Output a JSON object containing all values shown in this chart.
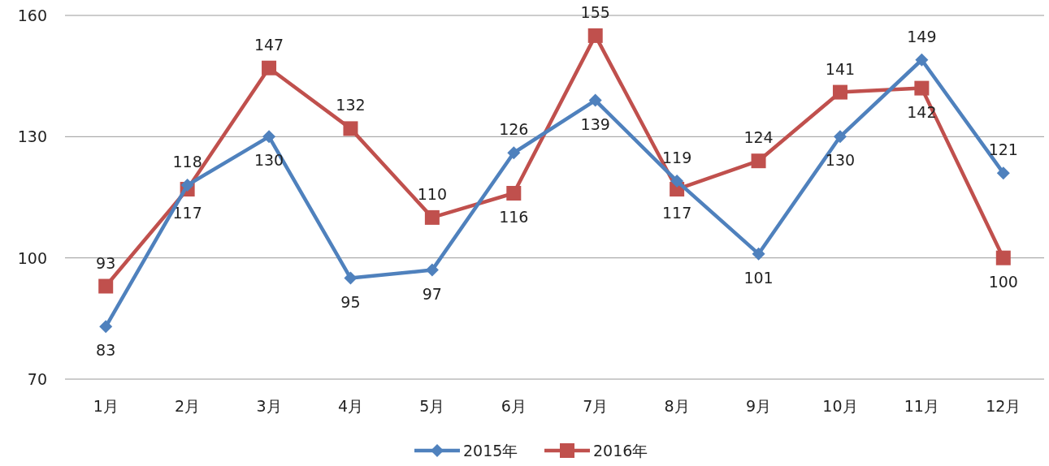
{
  "chart_data": {
    "type": "line",
    "categories": [
      "1月",
      "2月",
      "3月",
      "4月",
      "5月",
      "6月",
      "7月",
      "8月",
      "9月",
      "10月",
      "11月",
      "12月"
    ],
    "series": [
      {
        "name": "2015年",
        "color": "#4f81bd",
        "marker": "diamond",
        "values": [
          83,
          118,
          130,
          95,
          97,
          126,
          139,
          119,
          101,
          130,
          149,
          121
        ]
      },
      {
        "name": "2016年",
        "color": "#c0504d",
        "marker": "square",
        "values": [
          93,
          117,
          147,
          132,
          110,
          116,
          155,
          117,
          124,
          141,
          142,
          100
        ]
      }
    ],
    "ylim": [
      70,
      160
    ],
    "yticks": [
      70,
      100,
      130,
      160
    ],
    "grid": "y",
    "legend": "bottom",
    "data_labels": true
  }
}
